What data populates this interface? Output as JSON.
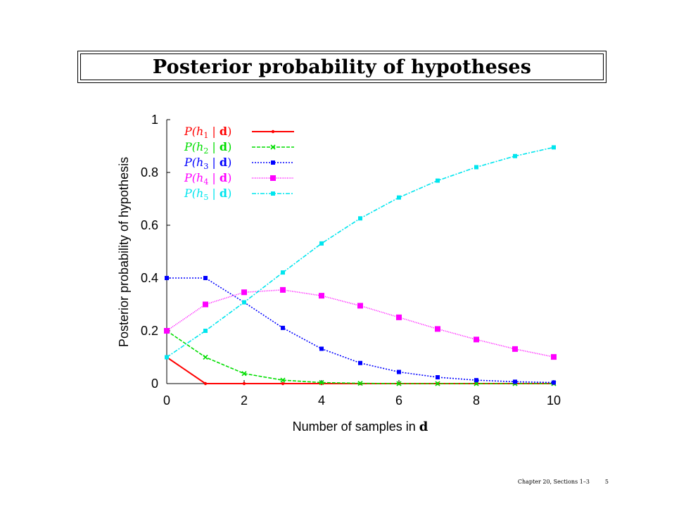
{
  "slide": {
    "title": "Posterior probability of hypotheses",
    "footer_section": "Chapter 20, Sections 1–3",
    "footer_page": "5"
  },
  "chart_data": {
    "type": "line",
    "title": "",
    "xlabel_plain": "Number of samples in ",
    "xlabel_bold": "d",
    "ylabel": "Posterior probability of hypothesis",
    "xlim": [
      0,
      10
    ],
    "ylim": [
      0,
      1
    ],
    "x_ticks": [
      "0",
      "2",
      "4",
      "6",
      "8",
      "10"
    ],
    "y_ticks": [
      "0",
      "0.2",
      "0.4",
      "0.6",
      "0.8",
      "1"
    ],
    "grid": false,
    "legend_position": "top-left",
    "x": [
      0,
      1,
      2,
      3,
      4,
      5,
      6,
      7,
      8,
      9,
      10
    ],
    "series": [
      {
        "name": "P(h1 | d)",
        "legend_parts": [
          "P(h",
          "1",
          " | ",
          "d",
          ")"
        ],
        "color": "#ff0000",
        "dash": "solid",
        "marker": "dot",
        "values": [
          0.1,
          0.0,
          0.0,
          0.0,
          0.0,
          0.0,
          0.0,
          0.0,
          0.0,
          0.0,
          0.0
        ]
      },
      {
        "name": "P(h2 | d)",
        "legend_parts": [
          "P(h",
          "2",
          " | ",
          "d",
          ")"
        ],
        "color": "#00dd00",
        "dash": "dashed",
        "marker": "x",
        "values": [
          0.2,
          0.1,
          0.038,
          0.013,
          0.004,
          0.001,
          0.0,
          0.0,
          0.0,
          0.0,
          0.0
        ]
      },
      {
        "name": "P(h3 | d)",
        "legend_parts": [
          "P(h",
          "3",
          " | ",
          "d",
          ")"
        ],
        "color": "#0000ff",
        "dash": "dotted",
        "marker": "filled-square",
        "values": [
          0.4,
          0.4,
          0.308,
          0.211,
          0.132,
          0.078,
          0.044,
          0.024,
          0.013,
          0.007,
          0.004
        ]
      },
      {
        "name": "P(h4 | d)",
        "legend_parts": [
          "P(h",
          "4",
          " | ",
          "d",
          ")"
        ],
        "color": "#ff00ff",
        "dash": "fine-dotted",
        "marker": "open-square",
        "values": [
          0.2,
          0.3,
          0.346,
          0.355,
          0.333,
          0.295,
          0.251,
          0.207,
          0.167,
          0.131,
          0.101
        ]
      },
      {
        "name": "P(h5 | d)",
        "legend_parts": [
          "P(h",
          "5",
          " | ",
          "d",
          ")"
        ],
        "color": "#00e5ee",
        "dash": "dash-dot",
        "marker": "filled-square",
        "values": [
          0.1,
          0.2,
          0.308,
          0.421,
          0.531,
          0.626,
          0.705,
          0.769,
          0.82,
          0.862,
          0.895
        ]
      }
    ]
  }
}
